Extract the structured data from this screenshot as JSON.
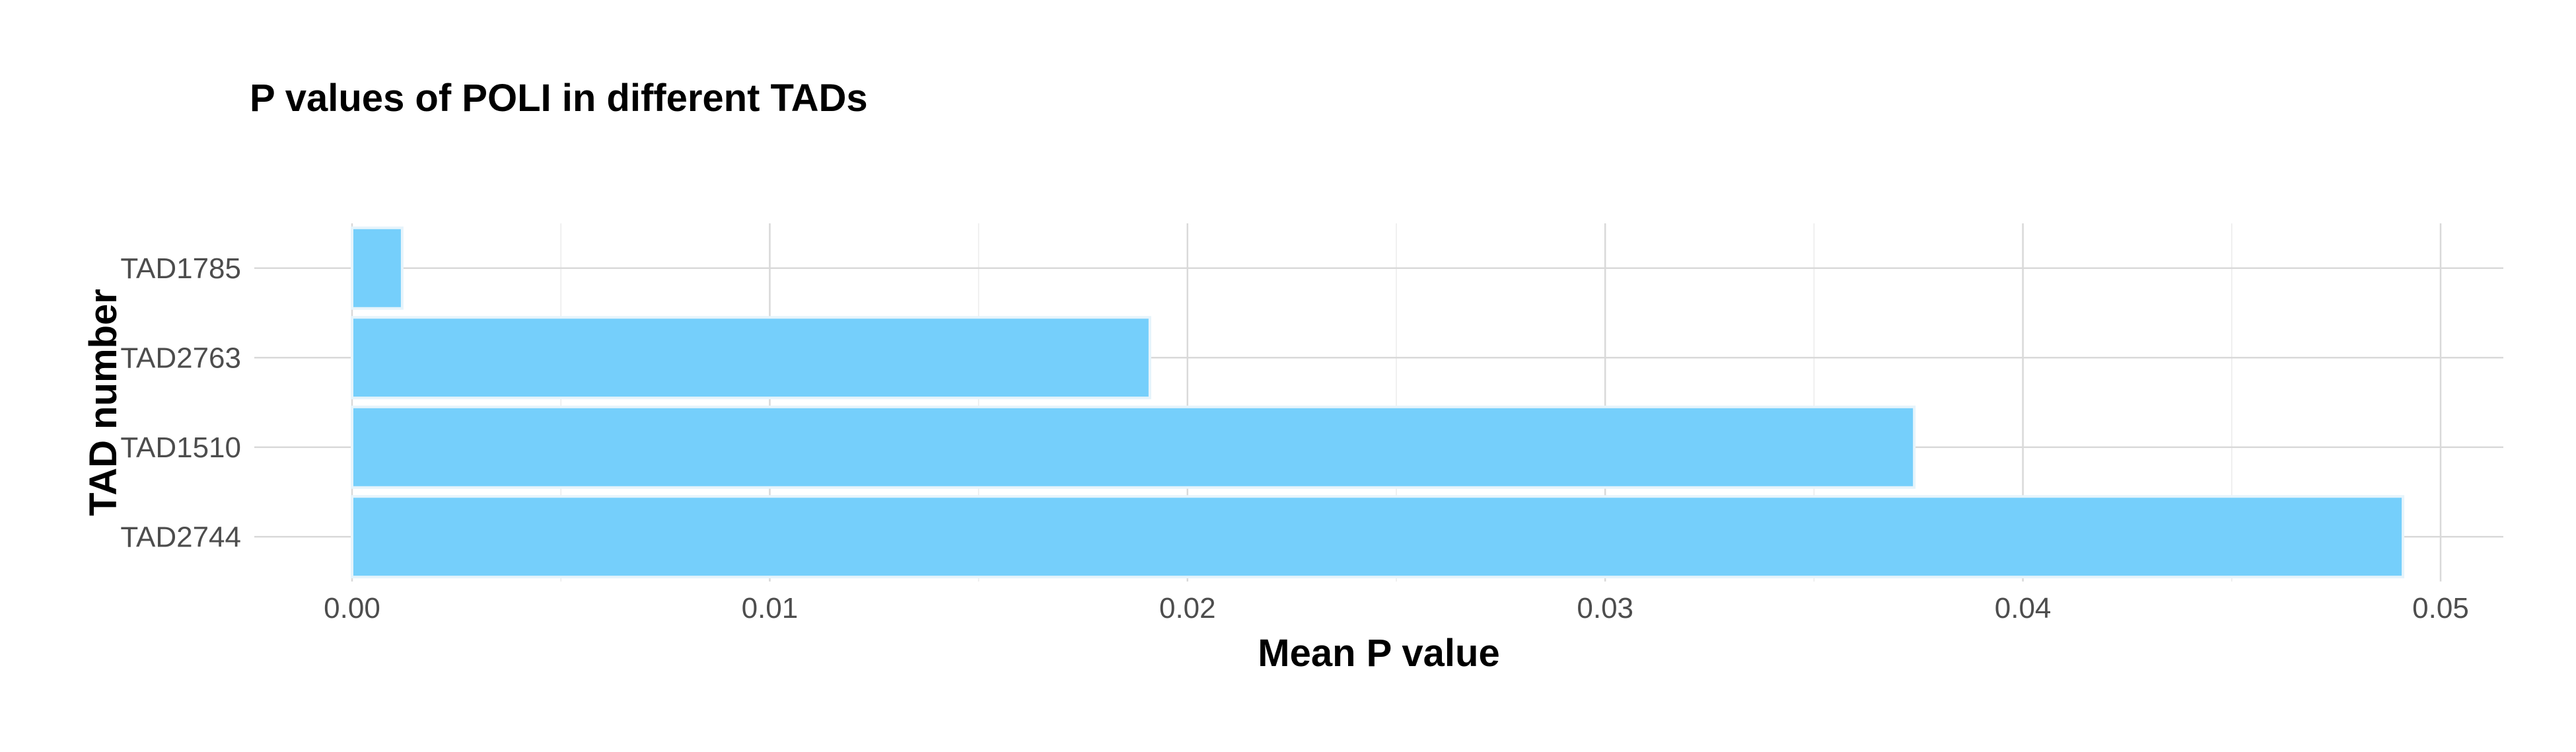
{
  "chart_data": {
    "type": "bar",
    "orientation": "horizontal",
    "title": "P values of POLI in different TADs",
    "xlabel": "Mean P value",
    "ylabel": "TAD number",
    "categories": [
      "TAD1785",
      "TAD2763",
      "TAD1510",
      "TAD2744"
    ],
    "values": [
      0.0012,
      0.0191,
      0.0374,
      0.0491
    ],
    "xlim": [
      0,
      0.0515
    ],
    "xticks": [
      0.0,
      0.01,
      0.02,
      0.03,
      0.04,
      0.05
    ],
    "xtick_labels": [
      "0.00",
      "0.01",
      "0.02",
      "0.03",
      "0.04",
      "0.05"
    ],
    "grid": true,
    "legend": "none",
    "bar_color": "#75CFFB",
    "bar_edge_color": "#E6F4FB"
  }
}
